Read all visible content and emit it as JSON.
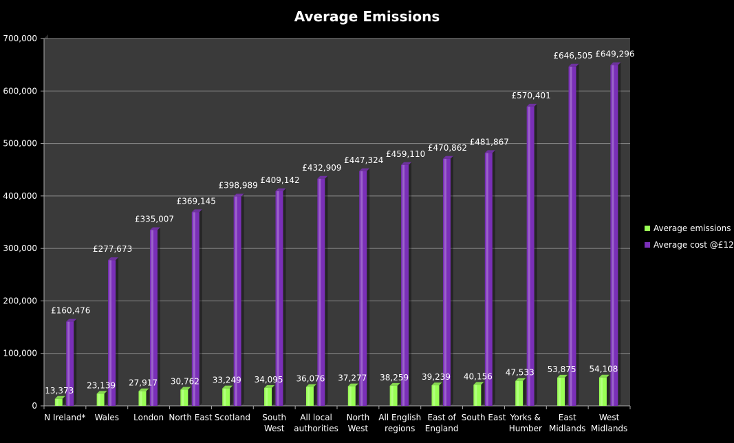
{
  "chart_data": {
    "type": "bar",
    "title": "Average Emissions",
    "xlabel": "",
    "ylabel": "",
    "ylim": [
      0,
      700000
    ],
    "yticks": [
      "0",
      "100,000",
      "200,000",
      "300,000",
      "400,000",
      "500,000",
      "600,000",
      "700,000"
    ],
    "grid": true,
    "legend_position": "right",
    "categories": [
      [
        "N Ireland*"
      ],
      [
        "Wales"
      ],
      [
        "London"
      ],
      [
        "North East"
      ],
      [
        "Scotland"
      ],
      [
        "South",
        "West"
      ],
      [
        "All local",
        "authorities"
      ],
      [
        "North",
        "West"
      ],
      [
        "All English",
        "regions"
      ],
      [
        "East of",
        "England"
      ],
      [
        "South East"
      ],
      [
        "Yorks &",
        "Humber"
      ],
      [
        "East",
        "Midlands"
      ],
      [
        "West",
        "Midlands"
      ]
    ],
    "series": [
      {
        "name": "Average emissions",
        "color": "#99ff55",
        "values": [
          13373,
          23139,
          27917,
          30762,
          33249,
          34095,
          36076,
          37277,
          38259,
          39239,
          40156,
          47533,
          53875,
          54108
        ],
        "labels": [
          "13,373",
          "23,139",
          "27,917",
          "30,762",
          "33,249",
          "34,095",
          "36,076",
          "37,277",
          "38,259",
          "39,239",
          "40,156",
          "47,533",
          "53,875",
          "54,108"
        ]
      },
      {
        "name": "Average cost @£12",
        "color": "#7a2fb8",
        "values": [
          160476,
          277673,
          335007,
          369145,
          398989,
          409142,
          432909,
          447324,
          459110,
          470862,
          481867,
          570401,
          646505,
          649296
        ],
        "labels": [
          "£160,476",
          "£277,673",
          "£335,007",
          "£369,145",
          "£398,989",
          "£409,142",
          "£432,909",
          "£447,324",
          "£459,110",
          "£470,862",
          "£481,867",
          "£570,401",
          "£646,505",
          "£649,296"
        ]
      }
    ],
    "colors": {
      "background": "#000000",
      "plot_area": "#3a3a3a",
      "gridline": "#8a8a8a",
      "text": "#ffffff"
    }
  }
}
